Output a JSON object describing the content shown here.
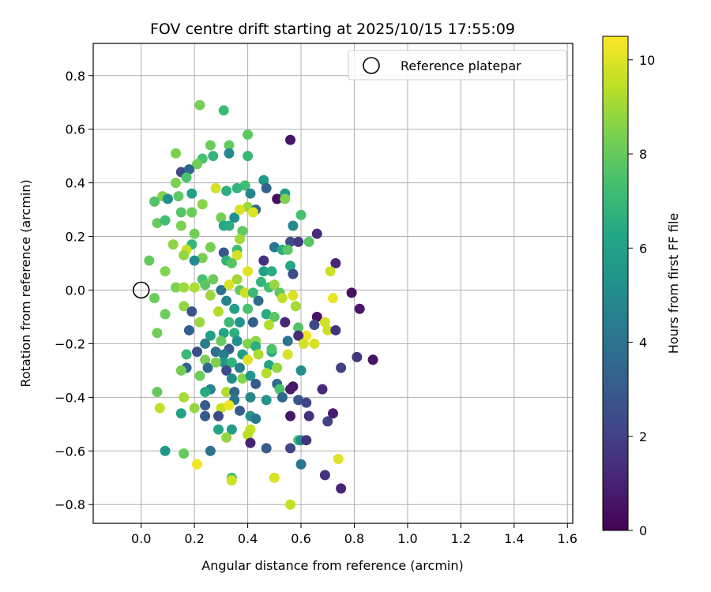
{
  "chart_data": {
    "type": "scatter",
    "title": "FOV centre drift starting at 2025/10/15 17:55:09",
    "xlabel": "Angular distance from reference (arcmin)",
    "ylabel": "Rotation from reference (arcmin)",
    "xlim": [
      -0.18,
      1.62
    ],
    "ylim": [
      -0.87,
      0.92
    ],
    "xticks": [
      "0.0",
      "0.2",
      "0.4",
      "0.6",
      "0.8",
      "1.0",
      "1.2",
      "1.4",
      "1.6"
    ],
    "yticks": [
      "0.8",
      "0.6",
      "0.4",
      "0.2",
      "0.0",
      "−0.2",
      "−0.4",
      "−0.6",
      "−0.8"
    ],
    "grid": true,
    "legend": {
      "position": "top-right",
      "entries": [
        {
          "label": "Reference platepar",
          "marker": "open-circle"
        }
      ]
    },
    "reference_point": {
      "x": 0.0,
      "y": 0.0
    },
    "colorbar": {
      "label": "Hours from first FF file",
      "colormap": "viridis",
      "range": [
        0,
        10.5
      ],
      "ticks": [
        "0",
        "2",
        "4",
        "6",
        "8",
        "10"
      ]
    },
    "points": [
      [
        0.22,
        0.69,
        8.3
      ],
      [
        0.31,
        0.67,
        7.1
      ],
      [
        0.4,
        0.58,
        7.9
      ],
      [
        0.26,
        0.54,
        8.1
      ],
      [
        0.33,
        0.54,
        8.0
      ],
      [
        0.56,
        0.56,
        0.6
      ],
      [
        0.33,
        0.51,
        5.0
      ],
      [
        0.4,
        0.5,
        7.0
      ],
      [
        0.13,
        0.51,
        8.4
      ],
      [
        0.23,
        0.49,
        7.4
      ],
      [
        0.27,
        0.5,
        6.9
      ],
      [
        0.21,
        0.47,
        8.2
      ],
      [
        0.15,
        0.44,
        2.4
      ],
      [
        0.18,
        0.45,
        3.5
      ],
      [
        0.17,
        0.42,
        7.5
      ],
      [
        0.46,
        0.41,
        5.6
      ],
      [
        0.13,
        0.4,
        8.4
      ],
      [
        0.39,
        0.39,
        7.2
      ],
      [
        0.28,
        0.38,
        9.8
      ],
      [
        0.32,
        0.37,
        6.6
      ],
      [
        0.36,
        0.38,
        6.8
      ],
      [
        0.47,
        0.38,
        3.3
      ],
      [
        0.51,
        0.34,
        0.4
      ],
      [
        0.08,
        0.35,
        8.5
      ],
      [
        0.14,
        0.35,
        7.9
      ],
      [
        0.19,
        0.36,
        5.9
      ],
      [
        0.41,
        0.36,
        4.8
      ],
      [
        0.54,
        0.36,
        5.7
      ],
      [
        0.1,
        0.34,
        5.2
      ],
      [
        0.05,
        0.33,
        7.6
      ],
      [
        0.23,
        0.32,
        8.6
      ],
      [
        0.4,
        0.31,
        8.9
      ],
      [
        0.43,
        0.3,
        3.6
      ],
      [
        0.54,
        0.34,
        8.5
      ],
      [
        0.57,
        0.24,
        4.9
      ],
      [
        0.6,
        0.28,
        7.4
      ],
      [
        0.3,
        0.27,
        8.3
      ],
      [
        0.35,
        0.27,
        5.2
      ],
      [
        0.37,
        0.3,
        9.9
      ],
      [
        0.42,
        0.29,
        10.0
      ],
      [
        0.15,
        0.29,
        7.7
      ],
      [
        0.19,
        0.29,
        8.1
      ],
      [
        0.06,
        0.25,
        8.0
      ],
      [
        0.09,
        0.26,
        7.2
      ],
      [
        0.15,
        0.24,
        8.4
      ],
      [
        0.31,
        0.24,
        6.2
      ],
      [
        0.33,
        0.24,
        6.5
      ],
      [
        0.38,
        0.22,
        7.9
      ],
      [
        0.2,
        0.21,
        8.2
      ],
      [
        0.66,
        0.21,
        1.3
      ],
      [
        0.37,
        0.19,
        9.0
      ],
      [
        0.63,
        0.18,
        7.7
      ],
      [
        0.56,
        0.18,
        2.4
      ],
      [
        0.59,
        0.18,
        1.8
      ],
      [
        0.19,
        0.17,
        6.9
      ],
      [
        0.12,
        0.17,
        8.7
      ],
      [
        0.5,
        0.16,
        4.2
      ],
      [
        0.26,
        0.16,
        8.3
      ],
      [
        0.36,
        0.15,
        7.2
      ],
      [
        0.17,
        0.15,
        9.6
      ],
      [
        0.16,
        0.13,
        8.8
      ],
      [
        0.23,
        0.12,
        8.4
      ],
      [
        0.31,
        0.14,
        2.8
      ],
      [
        0.36,
        0.13,
        9.8
      ],
      [
        0.53,
        0.15,
        6.5
      ],
      [
        0.55,
        0.15,
        7.8
      ],
      [
        0.03,
        0.11,
        8.0
      ],
      [
        0.2,
        0.11,
        5.0
      ],
      [
        0.32,
        0.11,
        6.8
      ],
      [
        0.34,
        0.1,
        7.7
      ],
      [
        0.46,
        0.11,
        1.5
      ],
      [
        0.56,
        0.09,
        6.2
      ],
      [
        0.73,
        0.1,
        1.1
      ],
      [
        0.09,
        0.07,
        8.5
      ],
      [
        0.4,
        0.07,
        10.0
      ],
      [
        0.46,
        0.07,
        6.0
      ],
      [
        0.49,
        0.07,
        6.5
      ],
      [
        0.57,
        0.06,
        2.4
      ],
      [
        0.71,
        0.07,
        9.7
      ],
      [
        0.23,
        0.04,
        7.4
      ],
      [
        0.27,
        0.04,
        8.1
      ],
      [
        0.36,
        0.04,
        9.0
      ],
      [
        0.45,
        0.03,
        6.9
      ],
      [
        0.48,
        0.01,
        7.3
      ],
      [
        0.5,
        0.02,
        8.8
      ],
      [
        0.13,
        0.01,
        8.4
      ],
      [
        0.16,
        0.01,
        8.9
      ],
      [
        0.2,
        0.01,
        9.2
      ],
      [
        0.24,
        0.02,
        7.8
      ],
      [
        0.3,
        0.0,
        4.0
      ],
      [
        0.33,
        0.02,
        9.9
      ],
      [
        0.37,
        0.0,
        8.0
      ],
      [
        0.39,
        -0.01,
        9.7
      ],
      [
        0.42,
        -0.01,
        7.1
      ],
      [
        0.52,
        -0.01,
        7.9
      ],
      [
        0.57,
        -0.02,
        10.0
      ],
      [
        0.79,
        -0.01,
        0.5
      ],
      [
        0.05,
        -0.03,
        8.1
      ],
      [
        0.26,
        -0.02,
        8.9
      ],
      [
        0.32,
        -0.04,
        4.7
      ],
      [
        0.44,
        -0.04,
        3.7
      ],
      [
        0.53,
        -0.03,
        9.5
      ],
      [
        0.72,
        -0.03,
        10.2
      ],
      [
        0.16,
        -0.06,
        8.7
      ],
      [
        0.19,
        -0.08,
        2.6
      ],
      [
        0.35,
        -0.07,
        5.9
      ],
      [
        0.4,
        -0.07,
        7.5
      ],
      [
        0.47,
        -0.09,
        6.5
      ],
      [
        0.5,
        -0.1,
        7.8
      ],
      [
        0.58,
        -0.06,
        9.1
      ],
      [
        0.66,
        -0.1,
        0.5
      ],
      [
        0.82,
        -0.07,
        0.7
      ],
      [
        0.09,
        -0.09,
        8.1
      ],
      [
        0.22,
        -0.12,
        8.9
      ],
      [
        0.29,
        -0.08,
        9.3
      ],
      [
        0.33,
        -0.12,
        7.1
      ],
      [
        0.37,
        -0.12,
        5.5
      ],
      [
        0.42,
        -0.12,
        3.1
      ],
      [
        0.54,
        -0.12,
        1.1
      ],
      [
        0.65,
        -0.13,
        2.3
      ],
      [
        0.69,
        -0.12,
        9.8
      ],
      [
        0.18,
        -0.15,
        3.2
      ],
      [
        0.31,
        -0.16,
        6.1
      ],
      [
        0.35,
        -0.16,
        6.6
      ],
      [
        0.48,
        -0.13,
        9.3
      ],
      [
        0.59,
        -0.14,
        7.6
      ],
      [
        0.62,
        -0.17,
        10.3
      ],
      [
        0.7,
        -0.15,
        9.7
      ],
      [
        0.73,
        -0.15,
        1.6
      ],
      [
        0.06,
        -0.16,
        8.2
      ],
      [
        0.26,
        -0.17,
        5.9
      ],
      [
        0.3,
        -0.19,
        8.0
      ],
      [
        0.36,
        -0.19,
        5.2
      ],
      [
        0.43,
        -0.19,
        8.7
      ],
      [
        0.55,
        -0.19,
        4.0
      ],
      [
        0.59,
        -0.17,
        1.3
      ],
      [
        0.61,
        -0.2,
        9.8
      ],
      [
        0.65,
        -0.2,
        9.9
      ],
      [
        0.81,
        -0.25,
        1.6
      ],
      [
        0.87,
        -0.26,
        0.6
      ],
      [
        0.24,
        -0.2,
        4.4
      ],
      [
        0.33,
        -0.22,
        3.0
      ],
      [
        0.4,
        -0.2,
        8.5
      ],
      [
        0.43,
        -0.21,
        6.6
      ],
      [
        0.49,
        -0.23,
        6.1
      ],
      [
        0.17,
        -0.24,
        7.0
      ],
      [
        0.21,
        -0.23,
        2.5
      ],
      [
        0.28,
        -0.23,
        3.8
      ],
      [
        0.31,
        -0.24,
        4.5
      ],
      [
        0.38,
        -0.24,
        5.8
      ],
      [
        0.44,
        -0.24,
        9.2
      ],
      [
        0.49,
        -0.22,
        7.5
      ],
      [
        0.55,
        -0.24,
        9.9
      ],
      [
        0.24,
        -0.26,
        8.3
      ],
      [
        0.31,
        -0.27,
        5.4
      ],
      [
        0.34,
        -0.27,
        6.8
      ],
      [
        0.4,
        -0.26,
        10.0
      ],
      [
        0.25,
        -0.29,
        3.5
      ],
      [
        0.28,
        -0.27,
        8.5
      ],
      [
        0.37,
        -0.29,
        4.4
      ],
      [
        0.48,
        -0.28,
        6.1
      ],
      [
        0.51,
        -0.29,
        8.8
      ],
      [
        0.6,
        -0.3,
        5.1
      ],
      [
        0.75,
        -0.29,
        2.0
      ],
      [
        0.17,
        -0.29,
        3.4
      ],
      [
        0.32,
        -0.3,
        2.3
      ],
      [
        0.38,
        -0.33,
        8.6
      ],
      [
        0.41,
        -0.32,
        5.5
      ],
      [
        0.47,
        -0.31,
        9.3
      ],
      [
        0.22,
        -0.32,
        8.1
      ],
      [
        0.15,
        -0.3,
        8.3
      ],
      [
        0.26,
        -0.37,
        4.7
      ],
      [
        0.34,
        -0.33,
        5.0
      ],
      [
        0.43,
        -0.35,
        3.0
      ],
      [
        0.51,
        -0.35,
        3.7
      ],
      [
        0.57,
        -0.36,
        0.6
      ],
      [
        0.56,
        -0.37,
        0.8
      ],
      [
        0.68,
        -0.37,
        1.2
      ],
      [
        0.06,
        -0.38,
        8.0
      ],
      [
        0.24,
        -0.38,
        6.4
      ],
      [
        0.32,
        -0.38,
        9.3
      ],
      [
        0.35,
        -0.38,
        3.5
      ],
      [
        0.41,
        -0.4,
        9.4
      ],
      [
        0.52,
        -0.37,
        7.5
      ],
      [
        0.16,
        -0.4,
        9.1
      ],
      [
        0.35,
        -0.41,
        4.1
      ],
      [
        0.41,
        -0.4,
        4.7
      ],
      [
        0.47,
        -0.41,
        5.4
      ],
      [
        0.53,
        -0.4,
        3.5
      ],
      [
        0.59,
        -0.41,
        2.7
      ],
      [
        0.62,
        -0.42,
        2.2
      ],
      [
        0.24,
        -0.43,
        3.0
      ],
      [
        0.3,
        -0.44,
        9.6
      ],
      [
        0.33,
        -0.43,
        10.2
      ],
      [
        0.2,
        -0.44,
        8.8
      ],
      [
        0.07,
        -0.44,
        9.5
      ],
      [
        0.15,
        -0.46,
        6.0
      ],
      [
        0.37,
        -0.45,
        3.1
      ],
      [
        0.29,
        -0.47,
        2.3
      ],
      [
        0.24,
        -0.47,
        2.9
      ],
      [
        0.56,
        -0.47,
        0.6
      ],
      [
        0.63,
        -0.47,
        1.5
      ],
      [
        0.72,
        -0.46,
        0.9
      ],
      [
        0.41,
        -0.47,
        5.4
      ],
      [
        0.43,
        -0.48,
        4.2
      ],
      [
        0.7,
        -0.49,
        2.0
      ],
      [
        0.29,
        -0.52,
        6.2
      ],
      [
        0.34,
        -0.52,
        5.8
      ],
      [
        0.41,
        -0.52,
        9.6
      ],
      [
        0.4,
        -0.54,
        9.4
      ],
      [
        0.32,
        -0.55,
        8.8
      ],
      [
        0.59,
        -0.56,
        7.4
      ],
      [
        0.6,
        -0.56,
        4.9
      ],
      [
        0.62,
        -0.56,
        1.5
      ],
      [
        0.41,
        -0.57,
        1.0
      ],
      [
        0.09,
        -0.6,
        5.5
      ],
      [
        0.16,
        -0.61,
        8.0
      ],
      [
        0.26,
        -0.6,
        3.9
      ],
      [
        0.47,
        -0.59,
        3.0
      ],
      [
        0.56,
        -0.59,
        2.2
      ],
      [
        0.74,
        -0.63,
        10.0
      ],
      [
        0.21,
        -0.65,
        10.3
      ],
      [
        0.6,
        -0.65,
        4.1
      ],
      [
        0.69,
        -0.69,
        1.5
      ],
      [
        0.34,
        -0.7,
        7.4
      ],
      [
        0.34,
        -0.71,
        9.7
      ],
      [
        0.5,
        -0.7,
        9.9
      ],
      [
        0.75,
        -0.74,
        1.0
      ],
      [
        0.56,
        -0.8,
        9.6
      ]
    ]
  }
}
